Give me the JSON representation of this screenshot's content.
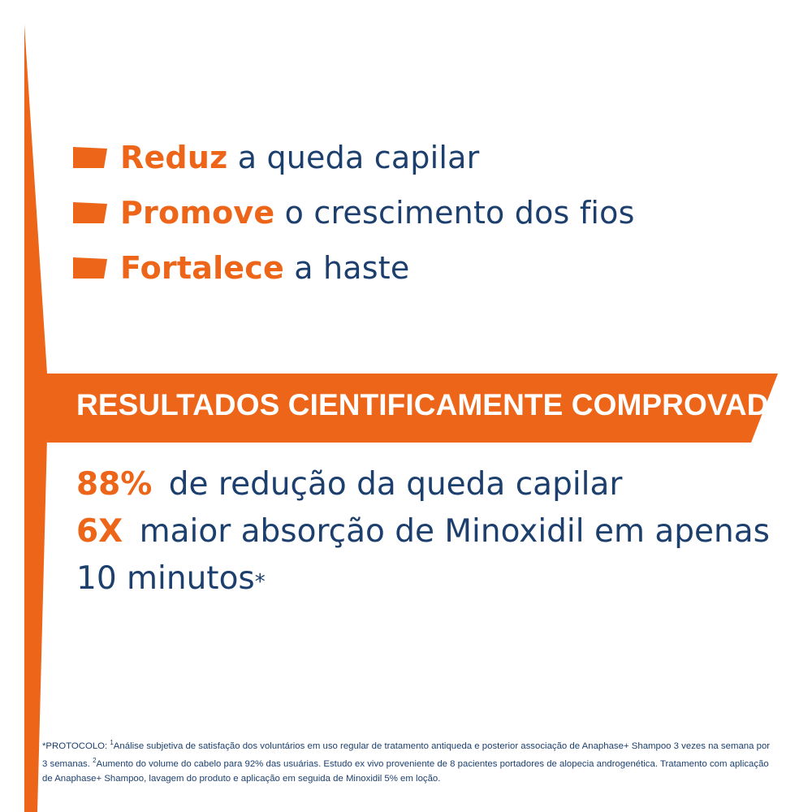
{
  "colors": {
    "accent": "#ec6518",
    "text": "#1c3f6e",
    "background": "#ffffff"
  },
  "benefits": [
    {
      "highlight": "Reduz",
      "text": "a queda capilar"
    },
    {
      "highlight": "Promove",
      "text": "o crescimento dos fios"
    },
    {
      "highlight": "Fortalece",
      "text": "a haste"
    }
  ],
  "banner": {
    "title": "RESULTADOS CIENTIFICAMENTE COMPROVADOS"
  },
  "results": [
    {
      "highlight": "88%",
      "text": "de redução da queda capilar"
    },
    {
      "highlight": "6X",
      "text": "maior absorção de Minoxidil em apenas 10 minutos",
      "suffix": "*"
    }
  ],
  "footnote": {
    "prefix": "*PROTOCOLO: ",
    "ref1": "1",
    "part1": "Análise subjetiva de satisfação dos voluntários em uso regular de tratamento antiqueda e posterior associação de Anaphase+ Shampoo 3 vezes na semana por 3 semanas. ",
    "ref2": "2",
    "part2": "Aumento do volume do cabelo para 92% das usuárias.  Estudo ex vivo proveniente de 8 pacientes portadores de alopecia androgenética. Tratamento com aplicação de Anaphase+ Shampoo, lavagem do produto e aplicação em seguida de Minoxidil 5% em loção."
  }
}
